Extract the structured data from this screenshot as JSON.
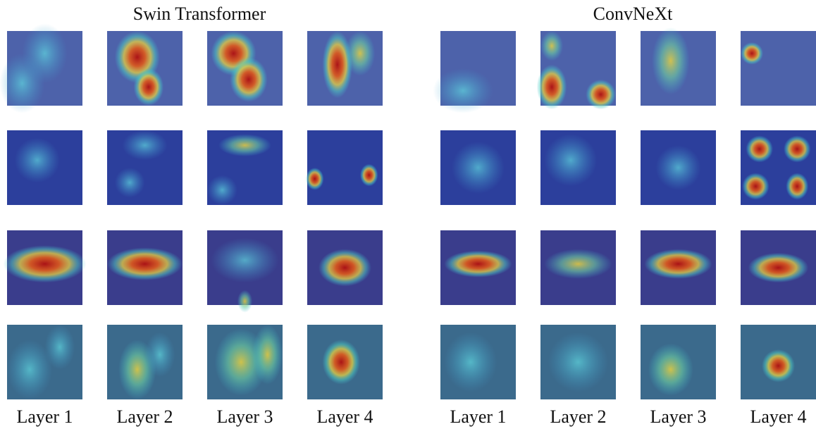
{
  "panels": [
    {
      "title": "Swin Transformer",
      "layer_labels": [
        "Layer 1",
        "Layer 2",
        "Layer 3",
        "Layer 4"
      ]
    },
    {
      "title": "ConvNeXt",
      "layer_labels": [
        "Layer 1",
        "Layer 2",
        "Layer 3",
        "Layer 4"
      ]
    }
  ]
}
